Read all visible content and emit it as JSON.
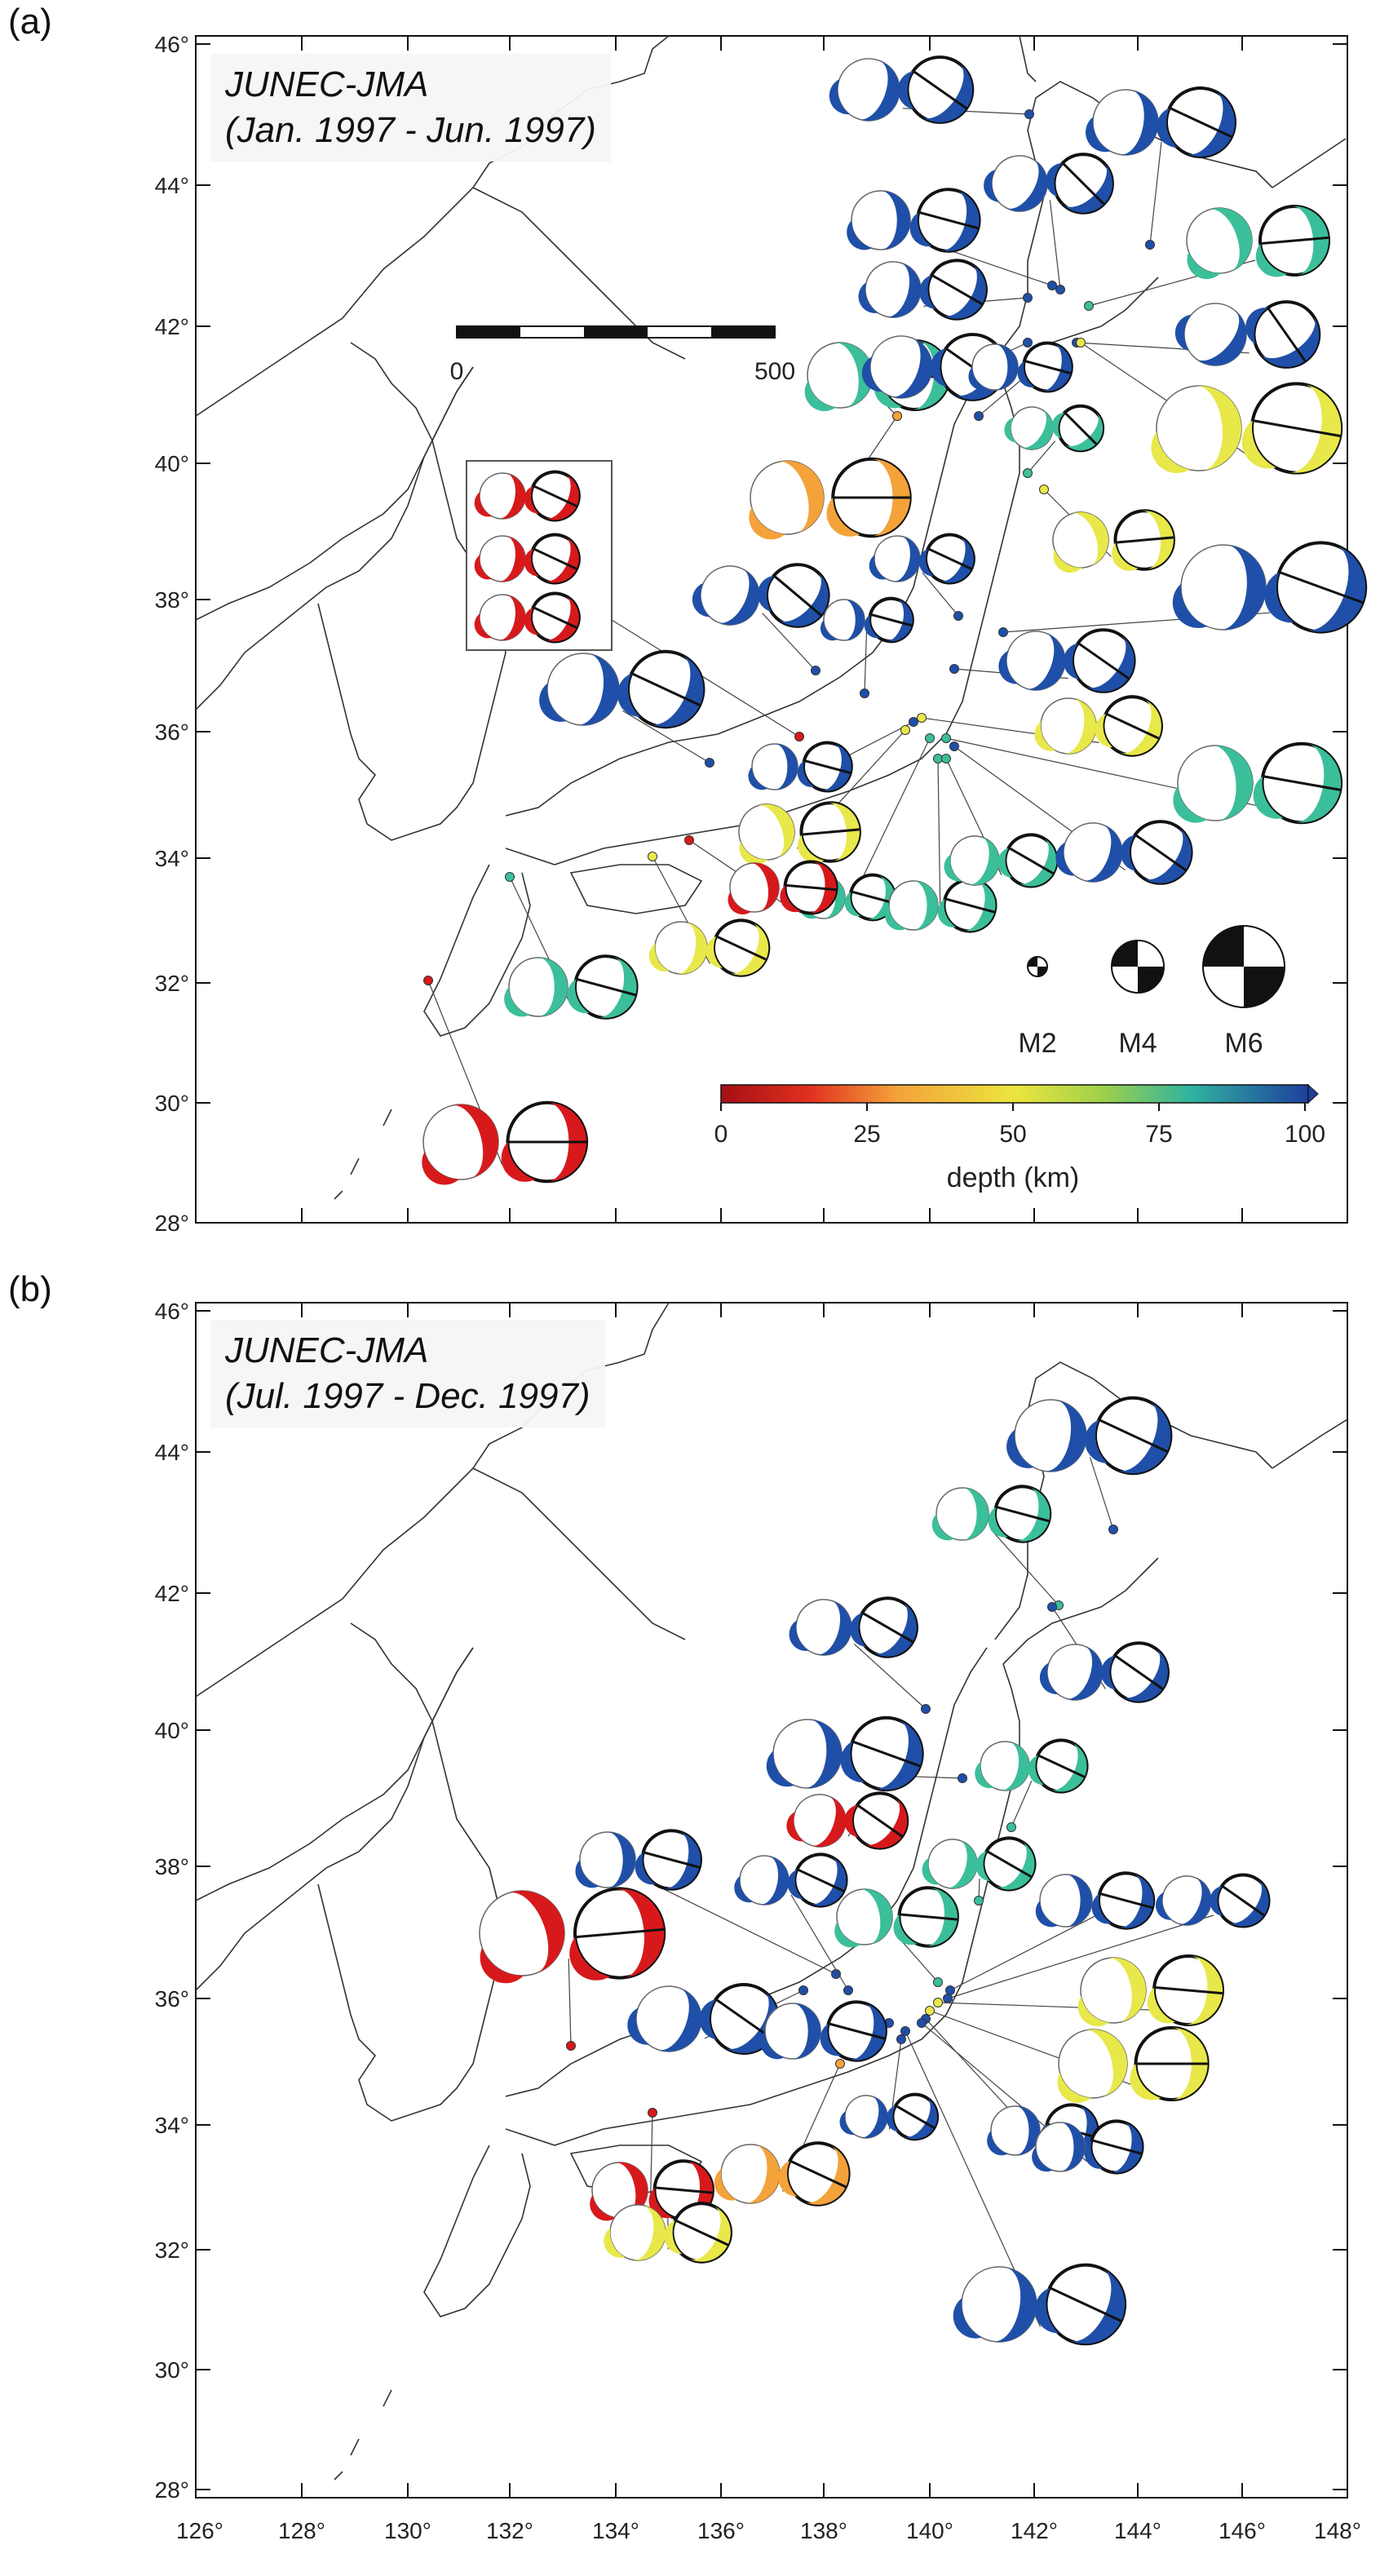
{
  "figure": {
    "panels": [
      {
        "label": "(a)",
        "title_line1": "JUNEC-JMA",
        "title_line2": "(Jan. 1997 - Jun. 1997)",
        "lat_ticks": [
          "46°",
          "44°",
          "42°",
          "40°",
          "38°",
          "36°",
          "34°",
          "32°",
          "30°",
          "28°"
        ],
        "scale_bar": {
          "start_label": "0",
          "end_label": "500"
        },
        "magnitude_legend": [
          "M2",
          "M4",
          "M6"
        ],
        "colorbar": {
          "ticks": [
            "0",
            "25",
            "50",
            "75",
            "100"
          ],
          "label": "depth (km)"
        }
      },
      {
        "label": "(b)",
        "title_line1": "JUNEC-JMA",
        "title_line2": "(Jul. 1997 - Dec. 1997)",
        "lat_ticks": [
          "46°",
          "44°",
          "42°",
          "40°",
          "38°",
          "36°",
          "34°",
          "32°",
          "30°",
          "28°"
        ]
      }
    ],
    "lon_ticks": [
      "126°",
      "128°",
      "130°",
      "132°",
      "134°",
      "136°",
      "138°",
      "140°",
      "142°",
      "144°",
      "146°",
      "148°"
    ],
    "depth_colors": {
      "shallow": "#d7191c",
      "d25": "#f4a23a",
      "d50": "#e8e84a",
      "d75": "#3bbf9a",
      "deep": "#1f4fa8"
    }
  }
}
